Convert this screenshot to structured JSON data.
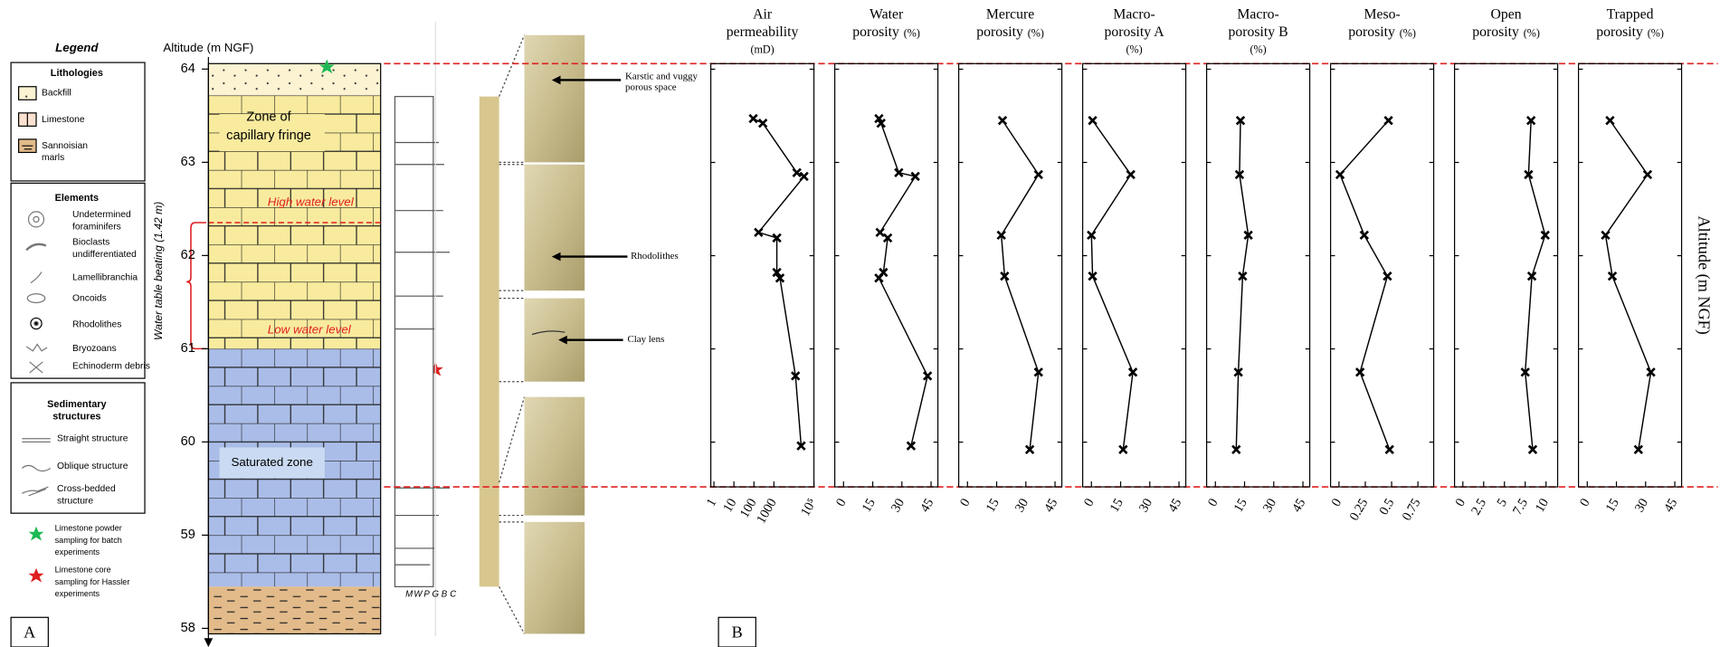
{
  "panel_a": {
    "label": "A",
    "legend": {
      "title": "Legend",
      "lithologies": {
        "title": "Lithologies",
        "items": [
          [
            "Backfill"
          ],
          [
            "Limestone"
          ],
          [
            "Sannoisian",
            "marls"
          ]
        ]
      },
      "elements": {
        "title": "Elements",
        "items": [
          [
            "Undetermined",
            "foraminifers"
          ],
          [
            "Bioclasts",
            "undifferentiated"
          ],
          [
            "Lamellibranchia"
          ],
          [
            "Oncoids"
          ],
          [
            "Rhodolithes"
          ],
          [
            "Bryozoans"
          ],
          [
            "Echinoderm debris"
          ]
        ]
      },
      "structures": {
        "title": [
          "Sedimentary",
          "structures"
        ],
        "items": [
          [
            "Straight structure"
          ],
          [
            "Oblique structure"
          ],
          [
            "Cross-bedded",
            "structure"
          ]
        ]
      },
      "samples": [
        [
          "Limestone powder",
          "sampling for batch",
          "experiments"
        ],
        [
          "Limestone core",
          "sampling for Hassler",
          "experiments"
        ]
      ]
    },
    "altitude_axis": {
      "title": "Altitude (m NGF)",
      "ylim": [
        58,
        64
      ],
      "yticks": [
        58,
        59,
        60,
        61,
        62,
        63,
        64
      ]
    },
    "water_table": "Water table beating (1.42 m)",
    "zones": {
      "capillary": [
        "Zone of",
        "capillary fringe"
      ],
      "high": "High water level",
      "low": "Low water level",
      "saturated": "Saturated zone"
    },
    "texture_scale": [
      "M",
      "W",
      "P",
      "G",
      "B",
      "C"
    ],
    "photo_labels": [
      [
        "Karstic and vuggy",
        "porous space"
      ],
      [
        "Rhodolithes"
      ],
      [
        "Clay lens"
      ]
    ]
  },
  "panel_b": {
    "label": "B",
    "y_title": "Altitude (m NGF)"
  },
  "chart_data": [
    {
      "type": "line",
      "title": [
        "Air",
        "permeability"
      ],
      "unit": "(mD)",
      "unit_below": true,
      "log": true,
      "xlim": [
        0.7,
        100000
      ],
      "xticks": [
        1,
        10,
        100,
        1000,
        {
          "value": 100000,
          "label": "10⁵"
        }
      ],
      "ylim": [
        59.52,
        64.06
      ],
      "yticks": [
        60,
        61,
        62,
        63,
        64
      ],
      "color": "#000000",
      "altitudes": [
        63.47,
        63.42,
        62.89,
        62.85,
        62.25,
        62.19,
        61.82,
        61.76,
        60.71,
        59.96
      ],
      "values": [
        93,
        280,
        14000,
        32000,
        170,
        1400,
        1400,
        2000,
        12000,
        23000
      ]
    },
    {
      "type": "line",
      "title": [
        "Water",
        "porosity"
      ],
      "unit": "(%)",
      "unit_below": false,
      "log": false,
      "xlim": [
        -4.5,
        48.5
      ],
      "xticks": [
        0,
        15,
        30,
        45
      ],
      "ylim": [
        59.52,
        64.06
      ],
      "yticks": [
        60,
        61,
        62,
        63,
        64
      ],
      "color": "#000000",
      "altitudes": [
        63.47,
        63.42,
        62.89,
        62.85,
        62.25,
        62.19,
        61.82,
        61.76,
        60.71,
        59.96
      ],
      "values": [
        18.2,
        19.3,
        28.4,
        36.9,
        18.8,
        22.7,
        20.5,
        18.2,
        43.2,
        34.7
      ]
    },
    {
      "type": "line",
      "title": [
        "Mercure",
        "porosity"
      ],
      "unit": "(%)",
      "unit_below": false,
      "log": false,
      "xlim": [
        -4.5,
        48.5
      ],
      "xticks": [
        0,
        15,
        30,
        45
      ],
      "ylim": [
        59.52,
        64.06
      ],
      "yticks": [
        60,
        61,
        62,
        63,
        64
      ],
      "color": "#000000",
      "altitudes": [
        63.45,
        62.87,
        62.22,
        61.78,
        60.75,
        59.92
      ],
      "values": [
        18,
        36.5,
        17.4,
        19.1,
        36.5,
        32
      ]
    },
    {
      "type": "line",
      "title": [
        "Macro-",
        "porosity A"
      ],
      "unit": "(%)",
      "unit_below": true,
      "log": false,
      "xlim": [
        -4.5,
        48.5
      ],
      "xticks": [
        0,
        15,
        30,
        45
      ],
      "ylim": [
        59.52,
        64.06
      ],
      "yticks": [
        60,
        61,
        62,
        63,
        64
      ],
      "color": "#000000",
      "altitudes": [
        63.45,
        62.87,
        62.22,
        61.78,
        60.75,
        59.92
      ],
      "values": [
        0.6,
        20.2,
        0,
        0.6,
        21.3,
        16.3
      ]
    },
    {
      "type": "line",
      "title": [
        "Macro-",
        "porosity B"
      ],
      "unit": "(%)",
      "unit_below": true,
      "log": false,
      "xlim": [
        -4.5,
        48.5
      ],
      "xticks": [
        0,
        15,
        30,
        45
      ],
      "ylim": [
        59.52,
        64.06
      ],
      "yticks": [
        60,
        61,
        62,
        63,
        64
      ],
      "color": "#000000",
      "altitudes": [
        63.45,
        62.87,
        62.22,
        61.78,
        60.75,
        59.92
      ],
      "values": [
        12.9,
        12.4,
        16.9,
        14,
        11.8,
        10.7
      ]
    },
    {
      "type": "line",
      "title": [
        "Meso-",
        "porosity"
      ],
      "unit": "(%)",
      "unit_below": false,
      "log": false,
      "xlim": [
        -0.08,
        0.9
      ],
      "xticks": [
        0,
        0.25,
        0.5,
        0.75
      ],
      "ylim": [
        59.52,
        64.06
      ],
      "yticks": [
        60,
        61,
        62,
        63,
        64
      ],
      "color": "#000000",
      "altitudes": [
        63.45,
        62.87,
        62.22,
        61.78,
        60.75,
        59.92
      ],
      "values": [
        0.47,
        0.01,
        0.24,
        0.46,
        0.2,
        0.48
      ]
    },
    {
      "type": "line",
      "title": [
        "Open",
        "porosity"
      ],
      "unit": "(%)",
      "unit_below": false,
      "log": false,
      "xlim": [
        -1,
        11.4
      ],
      "xticks": [
        0,
        2.5,
        5,
        7.5,
        10
      ],
      "ylim": [
        59.52,
        64.06
      ],
      "yticks": [
        60,
        61,
        62,
        63,
        64
      ],
      "color": "#000000",
      "altitudes": [
        63.45,
        62.87,
        62.22,
        61.78,
        60.75,
        59.92
      ],
      "values": [
        8.2,
        7.9,
        9.9,
        8.3,
        7.5,
        8.4
      ]
    },
    {
      "type": "line",
      "title": [
        "Trapped",
        "porosity"
      ],
      "unit": "(%)",
      "unit_below": false,
      "log": false,
      "xlim": [
        -4.5,
        48.5
      ],
      "xticks": [
        0,
        15,
        30,
        45
      ],
      "ylim": [
        59.52,
        64.06
      ],
      "yticks": [
        60,
        61,
        62,
        63,
        64
      ],
      "color": "#000000",
      "altitudes": [
        63.45,
        62.87,
        62.22,
        61.78,
        60.75,
        59.92
      ],
      "values": [
        11.7,
        31,
        9.4,
        12.9,
        32.7,
        26.3
      ]
    }
  ]
}
